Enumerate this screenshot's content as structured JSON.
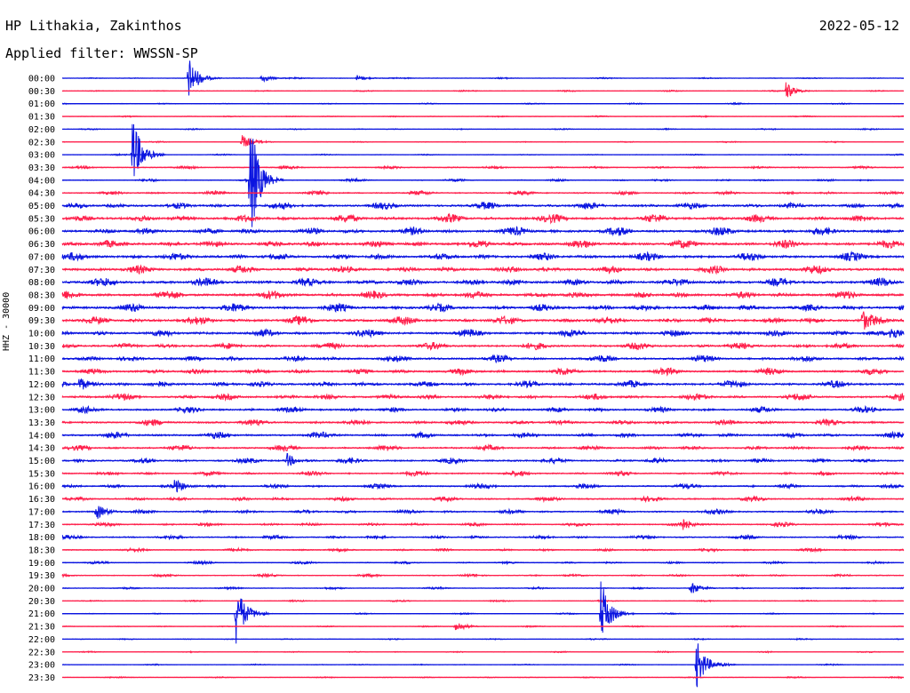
{
  "header": {
    "station": "HP Lithakia, Zakinthos",
    "filter": "Applied filter: WWSSN-SP",
    "date": "2022-05-12",
    "channel": "HHZ - 30000"
  },
  "colors": {
    "series_a": "#0a14e0",
    "series_b": "#ff1f4b"
  },
  "chart_data": {
    "type": "line",
    "title": "HP Lithakia, Zakinthos",
    "subtitle": "Applied filter: WWSSN-SP",
    "date": "2022-05-12",
    "ylabel": "HHZ - 30000",
    "xlabel": "",
    "trace_start_times": [
      "00:00",
      "00:30",
      "01:00",
      "01:30",
      "02:00",
      "02:30",
      "03:00",
      "03:30",
      "04:00",
      "04:30",
      "05:00",
      "05:30",
      "06:00",
      "06:30",
      "07:00",
      "07:30",
      "08:00",
      "08:30",
      "09:00",
      "09:30",
      "10:00",
      "10:30",
      "11:00",
      "11:30",
      "12:00",
      "12:30",
      "13:00",
      "13:30",
      "14:00",
      "14:30",
      "15:00",
      "15:30",
      "16:00",
      "16:30",
      "17:00",
      "17:30",
      "18:00",
      "18:30",
      "19:00",
      "19:30",
      "20:00",
      "20:30",
      "21:00",
      "21:30",
      "22:00",
      "22:30",
      "23:00",
      "23:30"
    ],
    "trace_colors_alternate": [
      "blue",
      "red"
    ],
    "noise_level_by_trace": [
      0.1,
      0.1,
      0.1,
      0.1,
      0.1,
      0.1,
      0.1,
      0.2,
      0.2,
      0.3,
      0.5,
      0.6,
      0.6,
      0.6,
      0.6,
      0.6,
      0.6,
      0.6,
      0.6,
      0.6,
      0.55,
      0.5,
      0.5,
      0.5,
      0.5,
      0.5,
      0.45,
      0.45,
      0.45,
      0.4,
      0.4,
      0.35,
      0.35,
      0.35,
      0.35,
      0.3,
      0.3,
      0.25,
      0.2,
      0.2,
      0.15,
      0.12,
      0.1,
      0.1,
      0.1,
      0.1,
      0.1,
      0.1
    ],
    "events": [
      {
        "trace": "00:00",
        "minute": 4.5,
        "amplitude": 25
      },
      {
        "trace": "00:00",
        "minute": 7.1,
        "amplitude": 5
      },
      {
        "trace": "00:00",
        "minute": 10.5,
        "amplitude": 4
      },
      {
        "trace": "00:30",
        "minute": 25.8,
        "amplitude": 10
      },
      {
        "trace": "02:30",
        "minute": 6.4,
        "amplitude": 8
      },
      {
        "trace": "03:00",
        "minute": 2.5,
        "amplitude": 45
      },
      {
        "trace": "04:00",
        "minute": 6.7,
        "amplitude": 70
      },
      {
        "trace": "09:30",
        "minute": 28.5,
        "amplitude": 12
      },
      {
        "trace": "10:00",
        "minute": 29.5,
        "amplitude": 10
      },
      {
        "trace": "12:00",
        "minute": 0.6,
        "amplitude": 9
      },
      {
        "trace": "15:00",
        "minute": 8.0,
        "amplitude": 8
      },
      {
        "trace": "16:00",
        "minute": 4.0,
        "amplitude": 7
      },
      {
        "trace": "17:00",
        "minute": 1.2,
        "amplitude": 9
      },
      {
        "trace": "17:30",
        "minute": 22.0,
        "amplitude": 8
      },
      {
        "trace": "20:00",
        "minute": 22.4,
        "amplitude": 8
      },
      {
        "trace": "21:00",
        "minute": 6.2,
        "amplitude": 35
      },
      {
        "trace": "21:00",
        "minute": 19.2,
        "amplitude": 40
      },
      {
        "trace": "21:30",
        "minute": 14.0,
        "amplitude": 8
      },
      {
        "trace": "23:00",
        "minute": 22.6,
        "amplitude": 30
      }
    ]
  }
}
